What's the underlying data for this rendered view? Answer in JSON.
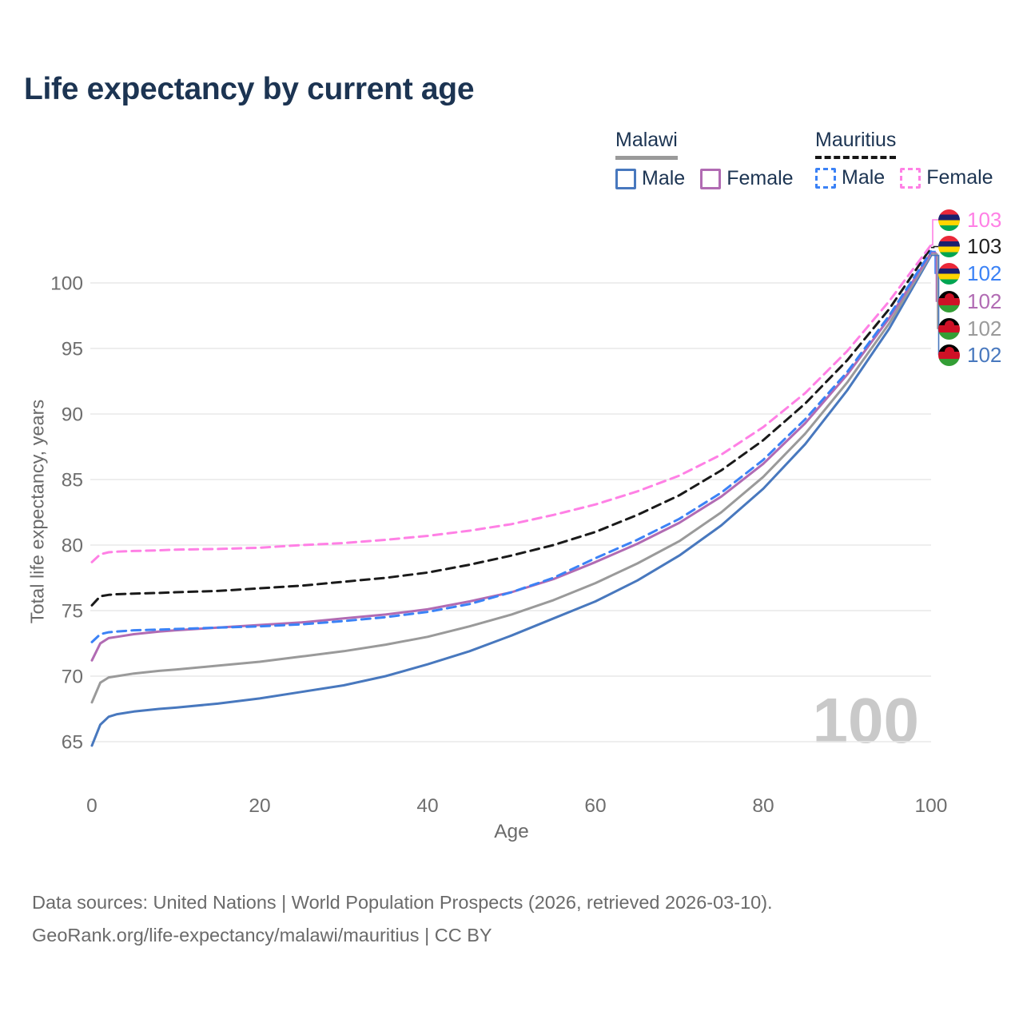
{
  "title": "Life expectancy by current age",
  "legend": {
    "groups": [
      {
        "country": "Malawi",
        "dash": "solid",
        "entries": [
          {
            "label": "Male",
            "color": "#4878BE"
          },
          {
            "label": "Female",
            "color": "#B16BB3"
          }
        ]
      },
      {
        "country": "Mauritius",
        "dash": "dashed",
        "entries": [
          {
            "label": "Male",
            "color": "#3B82F6"
          },
          {
            "label": "Female",
            "color": "#FF80E5"
          }
        ]
      }
    ]
  },
  "end_labels": [
    {
      "flag": "mauritius",
      "value": "103",
      "color": "#FF80E5"
    },
    {
      "flag": "mauritius",
      "value": "103",
      "color": "#1f1f1f"
    },
    {
      "flag": "mauritius",
      "value": "102",
      "color": "#3B82F6"
    },
    {
      "flag": "malawi",
      "value": "102",
      "color": "#B16BB3"
    },
    {
      "flag": "malawi",
      "value": "102",
      "color": "#9A9A9A"
    },
    {
      "flag": "malawi",
      "value": "102",
      "color": "#4878BE"
    }
  ],
  "watermark": "100",
  "footer": {
    "line1": "Data sources: United Nations | World Population Prospects (2026, retrieved 2026-03-10).",
    "line2": "GeoRank.org/life-expectancy/malawi/mauritius | CC BY"
  },
  "chart_data": {
    "type": "line",
    "title": "Life expectancy by current age",
    "xlabel": "Age",
    "ylabel": "Total life expectancy, years",
    "xlim": [
      0,
      100
    ],
    "ylim": [
      63,
      104
    ],
    "xticks": [
      0,
      20,
      40,
      60,
      80,
      100
    ],
    "yticks": [
      65,
      70,
      75,
      80,
      85,
      90,
      95,
      100
    ],
    "grid": "horizontal",
    "legend_position": "top-right",
    "x": [
      0,
      1,
      2,
      3,
      5,
      8,
      10,
      15,
      20,
      25,
      30,
      35,
      40,
      45,
      50,
      55,
      60,
      65,
      70,
      75,
      80,
      85,
      90,
      95,
      100
    ],
    "series": [
      {
        "name": "Malawi Male",
        "country": "Malawi",
        "sex": "Male",
        "color": "#4878BE",
        "dash": "solid",
        "values": [
          64.7,
          66.3,
          66.9,
          67.1,
          67.3,
          67.5,
          67.6,
          67.9,
          68.3,
          68.8,
          69.3,
          70.0,
          70.9,
          71.9,
          73.1,
          74.4,
          75.7,
          77.3,
          79.2,
          81.5,
          84.3,
          87.7,
          91.8,
          96.5,
          102.1
        ]
      },
      {
        "name": "Malawi Total",
        "country": "Malawi",
        "sex": "Both",
        "color": "#9A9A9A",
        "dash": "solid",
        "values": [
          68.0,
          69.5,
          69.9,
          70.0,
          70.2,
          70.4,
          70.5,
          70.8,
          71.1,
          71.5,
          71.9,
          72.4,
          73.0,
          73.8,
          74.7,
          75.8,
          77.1,
          78.6,
          80.3,
          82.5,
          85.2,
          88.5,
          92.4,
          96.9,
          102.2
        ]
      },
      {
        "name": "Malawi Female",
        "country": "Malawi",
        "sex": "Female",
        "color": "#B16BB3",
        "dash": "solid",
        "values": [
          71.2,
          72.5,
          72.9,
          73.0,
          73.2,
          73.4,
          73.5,
          73.7,
          73.9,
          74.1,
          74.4,
          74.7,
          75.1,
          75.7,
          76.4,
          77.4,
          78.7,
          80.1,
          81.7,
          83.7,
          86.2,
          89.3,
          93.0,
          97.3,
          102.3
        ]
      },
      {
        "name": "Mauritius Male",
        "country": "Mauritius",
        "sex": "Male",
        "color": "#3B82F6",
        "dash": "dashed",
        "values": [
          72.6,
          73.2,
          73.35,
          73.4,
          73.5,
          73.55,
          73.6,
          73.7,
          73.8,
          73.95,
          74.2,
          74.5,
          74.9,
          75.5,
          76.4,
          77.5,
          79.0,
          80.4,
          82.0,
          84.0,
          86.5,
          89.6,
          93.2,
          97.5,
          102.4
        ]
      },
      {
        "name": "Mauritius Total",
        "country": "Mauritius",
        "sex": "Both",
        "color": "#1A1A1A",
        "dash": "dashed",
        "values": [
          75.4,
          76.1,
          76.2,
          76.25,
          76.3,
          76.35,
          76.4,
          76.5,
          76.7,
          76.9,
          77.2,
          77.5,
          77.9,
          78.5,
          79.2,
          80.0,
          81.0,
          82.3,
          83.8,
          85.7,
          88.0,
          90.8,
          94.1,
          98.0,
          102.7
        ]
      },
      {
        "name": "Mauritius Female",
        "country": "Mauritius",
        "sex": "Female",
        "color": "#FF80E5",
        "dash": "dashed",
        "values": [
          78.7,
          79.3,
          79.45,
          79.5,
          79.55,
          79.6,
          79.65,
          79.7,
          79.8,
          80.0,
          80.15,
          80.4,
          80.7,
          81.1,
          81.6,
          82.3,
          83.1,
          84.1,
          85.3,
          86.9,
          89.0,
          91.6,
          94.8,
          98.6,
          102.9
        ]
      }
    ]
  }
}
